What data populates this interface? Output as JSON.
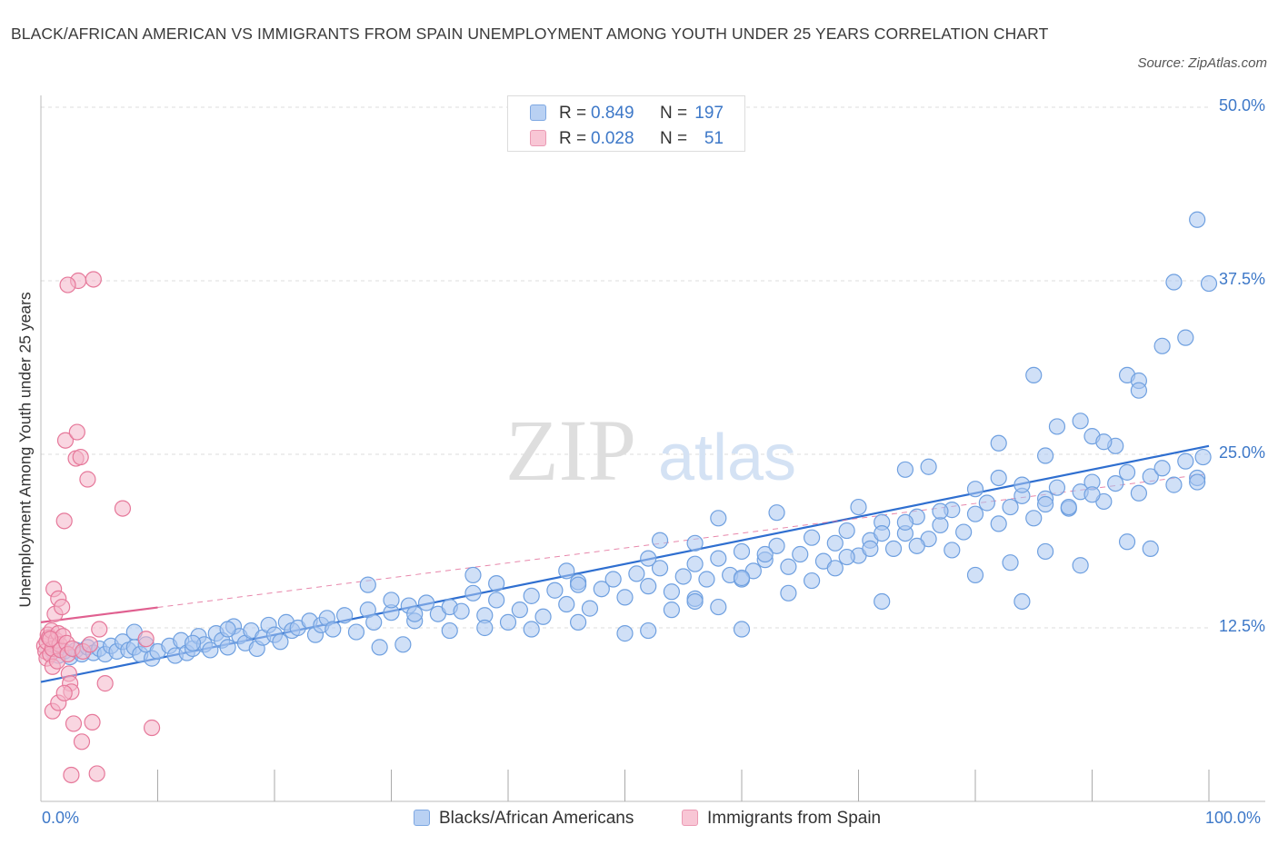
{
  "chart_data": {
    "type": "scatter",
    "title": "BLACK/AFRICAN AMERICAN VS IMMIGRANTS FROM SPAIN UNEMPLOYMENT AMONG YOUTH UNDER 25 YEARS CORRELATION CHART",
    "source": "Source: ZipAtlas.com",
    "xlabel": "",
    "ylabel": "Unemployment Among Youth under 25 years",
    "xlim": [
      0,
      100
    ],
    "ylim": [
      0,
      50
    ],
    "x_tick_labels": {
      "min": "0.0%",
      "max": "100.0%"
    },
    "y_ticks": [
      {
        "value": 12.5,
        "label": "12.5%"
      },
      {
        "value": 25,
        "label": "25.0%"
      },
      {
        "value": 37.5,
        "label": "37.5%"
      },
      {
        "value": 50,
        "label": "50.0%"
      }
    ],
    "legend_stats": [
      {
        "r_label": "R =",
        "r_value": "0.849",
        "n_label": "N =",
        "n_value": "197"
      },
      {
        "r_label": "R =",
        "r_value": "0.028",
        "n_label": "N =",
        "n_value": "51"
      }
    ],
    "series": [
      {
        "name": "Blacks/African Americans",
        "color": "#6fa0e0",
        "fill": "#a9c7f0",
        "line_color": "#2f6fd0",
        "trend": {
          "x": [
            0,
            100
          ],
          "y": [
            8.6,
            25.6
          ],
          "solid_to": 100
        },
        "points": [
          [
            1,
            10.8
          ],
          [
            1.5,
            10.5
          ],
          [
            2,
            10.8
          ],
          [
            2.5,
            10.4
          ],
          [
            3,
            10.9
          ],
          [
            3.5,
            10.6
          ],
          [
            4,
            11.1
          ],
          [
            4.5,
            10.7
          ],
          [
            5,
            11.0
          ],
          [
            5.5,
            10.6
          ],
          [
            6,
            11.2
          ],
          [
            6.5,
            10.8
          ],
          [
            7,
            11.5
          ],
          [
            7.5,
            10.9
          ],
          [
            8,
            11.1
          ],
          [
            8.5,
            10.6
          ],
          [
            9,
            11.3
          ],
          [
            9.5,
            10.3
          ],
          [
            10,
            10.8
          ],
          [
            11,
            11.2
          ],
          [
            11.5,
            10.5
          ],
          [
            12,
            11.6
          ],
          [
            12.5,
            10.7
          ],
          [
            13,
            11.0
          ],
          [
            13.5,
            11.9
          ],
          [
            14,
            11.3
          ],
          [
            14.5,
            10.9
          ],
          [
            15,
            12.1
          ],
          [
            15.5,
            11.6
          ],
          [
            16,
            11.1
          ],
          [
            16.5,
            12.6
          ],
          [
            17,
            11.9
          ],
          [
            17.5,
            11.4
          ],
          [
            18,
            12.3
          ],
          [
            18.5,
            11.0
          ],
          [
            19,
            11.8
          ],
          [
            19.5,
            12.7
          ],
          [
            20,
            12.0
          ],
          [
            20.5,
            11.5
          ],
          [
            21,
            12.9
          ],
          [
            21.5,
            12.3
          ],
          [
            22,
            12.5
          ],
          [
            23,
            13.0
          ],
          [
            23.5,
            12.0
          ],
          [
            24,
            12.7
          ],
          [
            24.5,
            13.2
          ],
          [
            25,
            12.4
          ],
          [
            26,
            13.4
          ],
          [
            27,
            12.2
          ],
          [
            28,
            13.8
          ],
          [
            28.5,
            12.9
          ],
          [
            29,
            11.1
          ],
          [
            30,
            13.6
          ],
          [
            31,
            11.3
          ],
          [
            31.5,
            14.1
          ],
          [
            32,
            13.0
          ],
          [
            33,
            14.3
          ],
          [
            34,
            13.5
          ],
          [
            35,
            14.0
          ],
          [
            36,
            13.7
          ],
          [
            37,
            15.0
          ],
          [
            38,
            13.4
          ],
          [
            39,
            14.5
          ],
          [
            40,
            12.9
          ],
          [
            41,
            13.8
          ],
          [
            42,
            14.8
          ],
          [
            43,
            13.3
          ],
          [
            44,
            15.2
          ],
          [
            45,
            14.2
          ],
          [
            46,
            15.8
          ],
          [
            47,
            13.9
          ],
          [
            48,
            15.3
          ],
          [
            49,
            16.0
          ],
          [
            50,
            14.7
          ],
          [
            51,
            16.4
          ],
          [
            52,
            15.5
          ],
          [
            53,
            16.8
          ],
          [
            54,
            15.1
          ],
          [
            55,
            16.2
          ],
          [
            56,
            17.1
          ],
          [
            57,
            16.0
          ],
          [
            58,
            17.5
          ],
          [
            59,
            16.3
          ],
          [
            60,
            18.0
          ],
          [
            61,
            16.6
          ],
          [
            62,
            17.4
          ],
          [
            63,
            18.4
          ],
          [
            64,
            16.9
          ],
          [
            65,
            17.8
          ],
          [
            66,
            19.0
          ],
          [
            67,
            17.3
          ],
          [
            68,
            18.6
          ],
          [
            69,
            19.5
          ],
          [
            70,
            17.7
          ],
          [
            71,
            18.8
          ],
          [
            72,
            20.1
          ],
          [
            73,
            18.2
          ],
          [
            74,
            19.3
          ],
          [
            75,
            20.5
          ],
          [
            76,
            18.9
          ],
          [
            77,
            19.9
          ],
          [
            78,
            21.0
          ],
          [
            79,
            19.4
          ],
          [
            80,
            20.7
          ],
          [
            81,
            21.5
          ],
          [
            82,
            20.0
          ],
          [
            83,
            21.2
          ],
          [
            84,
            22.0
          ],
          [
            85,
            20.4
          ],
          [
            86,
            21.8
          ],
          [
            87,
            22.6
          ],
          [
            88,
            21.1
          ],
          [
            89,
            22.3
          ],
          [
            90,
            23.0
          ],
          [
            91,
            21.6
          ],
          [
            92,
            22.9
          ],
          [
            93,
            23.7
          ],
          [
            94,
            22.2
          ],
          [
            95,
            23.4
          ],
          [
            96,
            24.0
          ],
          [
            97,
            22.8
          ],
          [
            98,
            24.5
          ],
          [
            99,
            23.3
          ],
          [
            99.5,
            24.8
          ],
          [
            16,
            12.4
          ],
          [
            30,
            14.5
          ],
          [
            45,
            16.6
          ],
          [
            60,
            16.0
          ],
          [
            75,
            18.4
          ],
          [
            90,
            22.1
          ],
          [
            53,
            18.8
          ],
          [
            58,
            20.4
          ],
          [
            63,
            20.8
          ],
          [
            70,
            21.2
          ],
          [
            74,
            23.9
          ],
          [
            76,
            24.1
          ],
          [
            82,
            25.8
          ],
          [
            84,
            22.8
          ],
          [
            86,
            21.4
          ],
          [
            88,
            21.2
          ],
          [
            52,
            17.5
          ],
          [
            56,
            18.6
          ],
          [
            62,
            17.8
          ],
          [
            68,
            16.8
          ],
          [
            71,
            18.2
          ],
          [
            78,
            18.1
          ],
          [
            80,
            16.3
          ],
          [
            83,
            17.2
          ],
          [
            86,
            18.0
          ],
          [
            89,
            17.0
          ],
          [
            93,
            18.7
          ],
          [
            95,
            18.2
          ],
          [
            84,
            14.4
          ],
          [
            72,
            14.4
          ],
          [
            58,
            14.0
          ],
          [
            46,
            15.6
          ],
          [
            39,
            15.7
          ],
          [
            37,
            16.3
          ],
          [
            32,
            13.5
          ],
          [
            28,
            15.6
          ],
          [
            35,
            12.3
          ],
          [
            38,
            12.5
          ],
          [
            42,
            12.4
          ],
          [
            46,
            12.9
          ],
          [
            50,
            12.1
          ],
          [
            52,
            12.3
          ],
          [
            54,
            13.8
          ],
          [
            56,
            14.6
          ],
          [
            60,
            16.1
          ],
          [
            64,
            15.0
          ],
          [
            66,
            15.9
          ],
          [
            69,
            17.6
          ],
          [
            72,
            19.3
          ],
          [
            74,
            20.1
          ],
          [
            77,
            20.9
          ],
          [
            80,
            22.5
          ],
          [
            82,
            23.3
          ],
          [
            86,
            24.9
          ],
          [
            87,
            27.0
          ],
          [
            89,
            27.4
          ],
          [
            90,
            26.3
          ],
          [
            92,
            25.6
          ],
          [
            93,
            30.7
          ],
          [
            94,
            30.3
          ],
          [
            96,
            32.8
          ],
          [
            97,
            37.4
          ],
          [
            98,
            33.4
          ],
          [
            99,
            41.9
          ],
          [
            100,
            37.3
          ],
          [
            85,
            30.7
          ],
          [
            91,
            25.9
          ],
          [
            94,
            29.6
          ],
          [
            99,
            23.0
          ],
          [
            60,
            12.4
          ],
          [
            56,
            14.4
          ],
          [
            8,
            12.2
          ],
          [
            13,
            11.4
          ]
        ]
      },
      {
        "name": "Immigrants from Spain",
        "color": "#e6789a",
        "fill": "#f4b4c8",
        "line_color": "#e06090",
        "trend": {
          "x": [
            0,
            100
          ],
          "y": [
            12.9,
            23.6
          ],
          "solid_to": 10
        },
        "points": [
          [
            0.3,
            11.2
          ],
          [
            0.4,
            10.8
          ],
          [
            0.5,
            11.5
          ],
          [
            0.5,
            10.3
          ],
          [
            0.6,
            12.0
          ],
          [
            0.7,
            11.8
          ],
          [
            0.8,
            10.6
          ],
          [
            0.9,
            12.3
          ],
          [
            1.0,
            11.0
          ],
          [
            1.0,
            9.7
          ],
          [
            1.1,
            15.3
          ],
          [
            1.2,
            13.5
          ],
          [
            1.3,
            11.6
          ],
          [
            1.4,
            10.1
          ],
          [
            1.5,
            12.1
          ],
          [
            1.5,
            14.6
          ],
          [
            1.6,
            11.3
          ],
          [
            1.7,
            10.9
          ],
          [
            1.8,
            14.0
          ],
          [
            1.9,
            11.9
          ],
          [
            2.0,
            20.2
          ],
          [
            2.1,
            26.0
          ],
          [
            2.2,
            11.4
          ],
          [
            2.3,
            10.6
          ],
          [
            2.4,
            9.2
          ],
          [
            2.5,
            8.5
          ],
          [
            2.6,
            7.9
          ],
          [
            2.7,
            11.0
          ],
          [
            3.0,
            24.7
          ],
          [
            3.1,
            26.6
          ],
          [
            3.2,
            37.5
          ],
          [
            3.4,
            24.8
          ],
          [
            3.6,
            10.8
          ],
          [
            4.0,
            23.2
          ],
          [
            4.2,
            11.3
          ],
          [
            4.5,
            37.6
          ],
          [
            5.0,
            12.4
          ],
          [
            5.5,
            8.5
          ],
          [
            7.0,
            21.1
          ],
          [
            9.0,
            11.7
          ],
          [
            1.0,
            6.5
          ],
          [
            1.5,
            7.1
          ],
          [
            2.0,
            7.8
          ],
          [
            2.8,
            5.6
          ],
          [
            3.5,
            4.3
          ],
          [
            4.4,
            5.7
          ],
          [
            2.6,
            1.9
          ],
          [
            4.8,
            2.0
          ],
          [
            9.5,
            5.3
          ],
          [
            0.8,
            11.7
          ],
          [
            2.3,
            37.2
          ]
        ]
      }
    ]
  }
}
